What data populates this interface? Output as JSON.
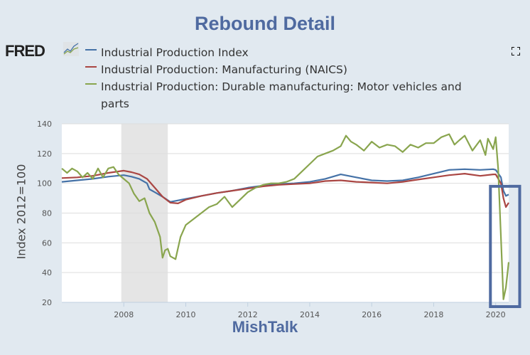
{
  "title": "Rebound Detail",
  "footer_label": "MishTalk",
  "logo": {
    "text": "FRED",
    "icon": "fred-sparkline-icon"
  },
  "controls": {
    "fullscreen_icon": "fullscreen-icon"
  },
  "colors": {
    "title": "#4f6aa0",
    "blue": "#4572a7",
    "red": "#aa4643",
    "green": "#89a54e",
    "recession": "#e5e5e5",
    "highlight_box": "#4f6aa0"
  },
  "chart_data": {
    "type": "line",
    "title": "Rebound Detail",
    "xlabel": "",
    "ylabel": "Index 2012=100",
    "xlim": [
      2006.0,
      2020.42
    ],
    "ylim": [
      20,
      140
    ],
    "yticks": [
      20,
      40,
      60,
      80,
      100,
      120,
      140
    ],
    "xticks": [
      2008,
      2010,
      2012,
      2014,
      2016,
      2018,
      2020
    ],
    "grid": true,
    "legend_position": "top",
    "recession_band": [
      2007.92,
      2009.42
    ],
    "annotation": {
      "type": "highlight-box",
      "x_range": [
        2019.83,
        2020.5
      ],
      "y_range": [
        20,
        98
      ]
    },
    "series": [
      {
        "name": "Industrial Production Index",
        "color": "#4572a7",
        "x": [
          2006.0,
          2006.5,
          2007.0,
          2007.5,
          2008.0,
          2008.25,
          2008.5,
          2008.75,
          2008.83,
          2009.0,
          2009.25,
          2009.5,
          2009.75,
          2010.0,
          2010.5,
          2011.0,
          2011.5,
          2012.0,
          2012.5,
          2013.0,
          2013.5,
          2014.0,
          2014.5,
          2015.0,
          2015.5,
          2016.0,
          2016.5,
          2017.0,
          2017.5,
          2018.0,
          2018.5,
          2019.0,
          2019.5,
          2019.92,
          2020.0,
          2020.17,
          2020.25,
          2020.33,
          2020.42
        ],
        "y": [
          101,
          102,
          103,
          104.5,
          105.5,
          104.5,
          103,
          100,
          96,
          94,
          91,
          87.5,
          88.5,
          89.5,
          91.5,
          93.5,
          95,
          97,
          98.5,
          99.5,
          100,
          101,
          103,
          106,
          104,
          102,
          101.5,
          102,
          104,
          106.5,
          109,
          109.5,
          109,
          109.5,
          109,
          104,
          95,
          91.5,
          92.5
        ]
      },
      {
        "name": "Industrial Production: Manufacturing (NAICS)",
        "color": "#aa4643",
        "x": [
          2006.0,
          2006.5,
          2007.0,
          2007.5,
          2008.0,
          2008.25,
          2008.5,
          2008.75,
          2009.0,
          2009.25,
          2009.5,
          2009.75,
          2010.0,
          2010.5,
          2011.0,
          2011.5,
          2012.0,
          2012.5,
          2013.0,
          2013.5,
          2014.0,
          2014.5,
          2015.0,
          2015.5,
          2016.0,
          2016.5,
          2017.0,
          2017.5,
          2018.0,
          2018.5,
          2019.0,
          2019.5,
          2019.92,
          2020.0,
          2020.17,
          2020.25,
          2020.33,
          2020.42
        ],
        "y": [
          103.5,
          104,
          105,
          107,
          108.5,
          107.5,
          106,
          103,
          97,
          91,
          87,
          86.5,
          89,
          91.5,
          93.5,
          95,
          96.5,
          98,
          99,
          99.5,
          100,
          101.5,
          102,
          101,
          100.5,
          100,
          101,
          102.5,
          104,
          105.5,
          106.5,
          105,
          106,
          106,
          100,
          90,
          84,
          87
        ]
      },
      {
        "name": "Industrial Production: Durable manufacturing: Motor vehicles and parts",
        "color": "#89a54e",
        "x": [
          2006.0,
          2006.17,
          2006.33,
          2006.5,
          2006.67,
          2006.83,
          2007.0,
          2007.17,
          2007.33,
          2007.5,
          2007.67,
          2007.83,
          2008.0,
          2008.17,
          2008.33,
          2008.5,
          2008.67,
          2008.83,
          2009.0,
          2009.17,
          2009.25,
          2009.33,
          2009.42,
          2009.5,
          2009.67,
          2009.83,
          2010.0,
          2010.25,
          2010.5,
          2010.75,
          2011.0,
          2011.25,
          2011.5,
          2011.75,
          2012.0,
          2012.25,
          2012.5,
          2012.75,
          2013.0,
          2013.25,
          2013.5,
          2013.75,
          2014.0,
          2014.25,
          2014.5,
          2014.75,
          2015.0,
          2015.17,
          2015.33,
          2015.5,
          2015.75,
          2016.0,
          2016.25,
          2016.5,
          2016.75,
          2017.0,
          2017.25,
          2017.5,
          2017.75,
          2018.0,
          2018.25,
          2018.5,
          2018.67,
          2018.83,
          2019.0,
          2019.25,
          2019.5,
          2019.67,
          2019.75,
          2019.92,
          2020.0,
          2020.08,
          2020.25,
          2020.33,
          2020.42
        ],
        "y": [
          110,
          107,
          110,
          108,
          104,
          107,
          103,
          110,
          104,
          110,
          111,
          106,
          103,
          100,
          93,
          88,
          90,
          80,
          74,
          64,
          50,
          55,
          56,
          51,
          49,
          64,
          72,
          76,
          80,
          84,
          86,
          91,
          84,
          89,
          94,
          97,
          99,
          100,
          100,
          101,
          103,
          108,
          113,
          118,
          120,
          122,
          125,
          132,
          128,
          126,
          122,
          128,
          124,
          126,
          125,
          121,
          126,
          124,
          127,
          127,
          131,
          133,
          126,
          129,
          132,
          122,
          129,
          119,
          130,
          123,
          131,
          110,
          22,
          30,
          47
        ]
      }
    ]
  }
}
